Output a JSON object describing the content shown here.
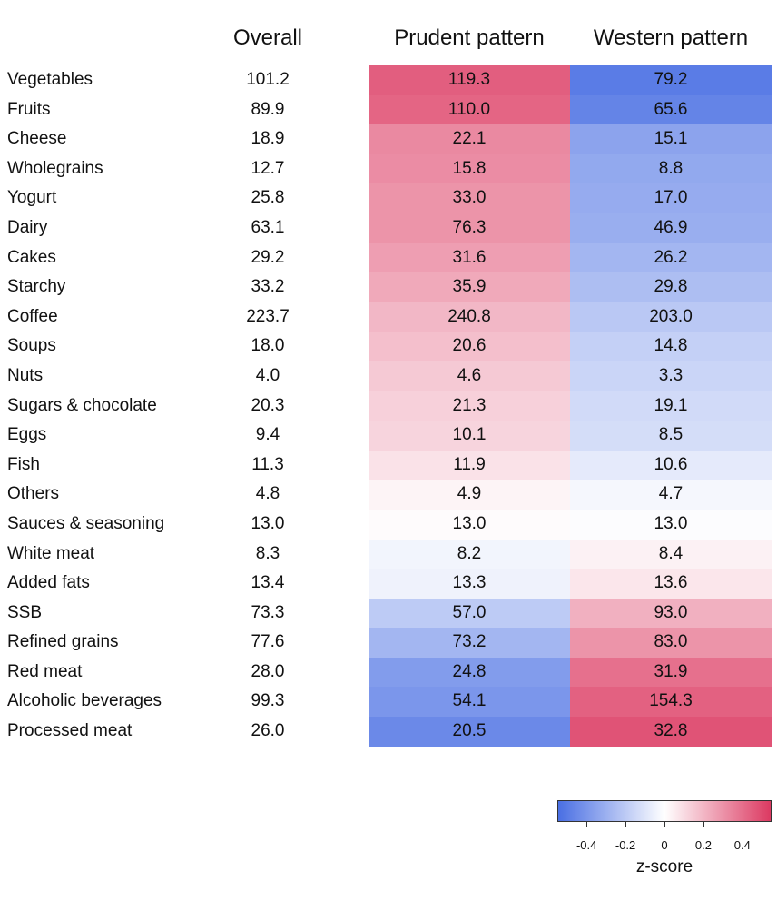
{
  "chart_data": {
    "type": "heatmap",
    "columns": [
      "Overall",
      "Prudent pattern",
      "Western pattern"
    ],
    "rows": [
      {
        "food": "Vegetables",
        "overall": "101.2",
        "prudent": "119.3",
        "western": "79.2",
        "z_prudent": 0.45,
        "z_western": -0.5
      },
      {
        "food": "Fruits",
        "overall": "89.9",
        "prudent": "110.0",
        "western": "65.6",
        "z_prudent": 0.43,
        "z_western": -0.47
      },
      {
        "food": "Cheese",
        "overall": "18.9",
        "prudent": "22.1",
        "western": "15.1",
        "z_prudent": 0.33,
        "z_western": -0.35
      },
      {
        "food": "Wholegrains",
        "overall": "12.7",
        "prudent": "15.8",
        "western": "8.8",
        "z_prudent": 0.32,
        "z_western": -0.33
      },
      {
        "food": "Yogurt",
        "overall": "25.8",
        "prudent": "33.0",
        "western": "17.0",
        "z_prudent": 0.3,
        "z_western": -0.32
      },
      {
        "food": "Dairy",
        "overall": "63.1",
        "prudent": "76.3",
        "western": "46.9",
        "z_prudent": 0.3,
        "z_western": -0.31
      },
      {
        "food": "Cakes",
        "overall": "29.2",
        "prudent": "31.6",
        "western": "26.2",
        "z_prudent": 0.27,
        "z_western": -0.28
      },
      {
        "food": "Starchy",
        "overall": "33.2",
        "prudent": "35.9",
        "western": "29.8",
        "z_prudent": 0.24,
        "z_western": -0.25
      },
      {
        "food": "Coffee",
        "overall": "223.7",
        "prudent": "240.8",
        "western": "203.0",
        "z_prudent": 0.2,
        "z_western": -0.21
      },
      {
        "food": "Soups",
        "overall": "18.0",
        "prudent": "20.6",
        "western": "14.8",
        "z_prudent": 0.18,
        "z_western": -0.18
      },
      {
        "food": "Nuts",
        "overall": "4.0",
        "prudent": "4.6",
        "western": "3.3",
        "z_prudent": 0.15,
        "z_western": -0.16
      },
      {
        "food": "Sugars & chocolate",
        "overall": "20.3",
        "prudent": "21.3",
        "western": "19.1",
        "z_prudent": 0.13,
        "z_western": -0.14
      },
      {
        "food": "Eggs",
        "overall": "9.4",
        "prudent": "10.1",
        "western": "8.5",
        "z_prudent": 0.12,
        "z_western": -0.13
      },
      {
        "food": "Fish",
        "overall": "11.3",
        "prudent": "11.9",
        "western": "10.6",
        "z_prudent": 0.08,
        "z_western": -0.08
      },
      {
        "food": "Others",
        "overall": "4.8",
        "prudent": "4.9",
        "western": "4.7",
        "z_prudent": 0.03,
        "z_western": -0.03
      },
      {
        "food": "Sauces & seasoning",
        "overall": "13.0",
        "prudent": "13.0",
        "western": "13.0",
        "z_prudent": 0.01,
        "z_western": -0.01
      },
      {
        "food": "White meat",
        "overall": "8.3",
        "prudent": "8.2",
        "western": "8.4",
        "z_prudent": -0.04,
        "z_western": 0.04
      },
      {
        "food": "Added fats",
        "overall": "13.4",
        "prudent": "13.3",
        "western": "13.6",
        "z_prudent": -0.05,
        "z_western": 0.07
      },
      {
        "food": "SSB",
        "overall": "73.3",
        "prudent": "57.0",
        "western": "93.0",
        "z_prudent": -0.2,
        "z_western": 0.22
      },
      {
        "food": "Refined grains",
        "overall": "77.6",
        "prudent": "73.2",
        "western": "83.0",
        "z_prudent": -0.28,
        "z_western": 0.3
      },
      {
        "food": "Red meat",
        "overall": "28.0",
        "prudent": "24.8",
        "western": "31.9",
        "z_prudent": -0.38,
        "z_western": 0.4
      },
      {
        "food": "Alcoholic beverages",
        "overall": "99.3",
        "prudent": "54.1",
        "western": "154.3",
        "z_prudent": -0.4,
        "z_western": 0.44
      },
      {
        "food": "Processed meat",
        "overall": "26.0",
        "prudent": "20.5",
        "western": "32.8",
        "z_prudent": -0.45,
        "z_western": 0.48
      }
    ],
    "colorscale": {
      "low": "#4a6fe3",
      "mid": "#ffffff",
      "high": "#dc3a62",
      "range": [
        -0.55,
        0.55
      ],
      "ticks": [
        -0.4,
        -0.2,
        0,
        0.2,
        0.4
      ],
      "tick_labels": [
        "-0.4",
        "-0.2",
        "0",
        "0.2",
        "0.4"
      ],
      "title": "z-score"
    }
  }
}
